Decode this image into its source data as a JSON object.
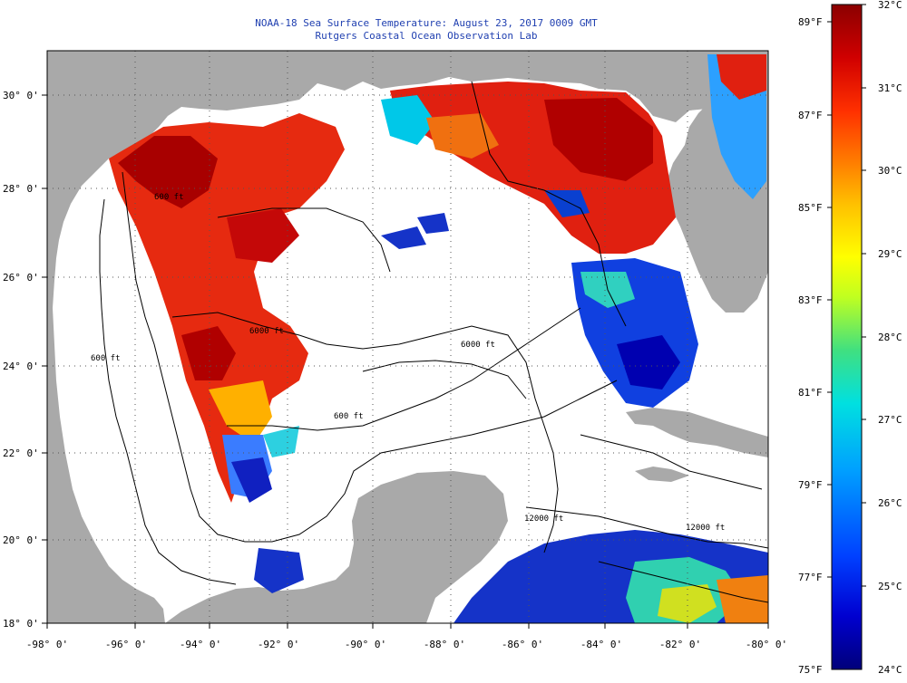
{
  "title": {
    "line1": "NOAA-18 Sea Surface Temperature:  August 23, 2017 0009 GMT",
    "line2": "Rutgers Coastal Ocean Observation Lab"
  },
  "map": {
    "lon_labels": [
      "-98° 0'",
      "-96° 0'",
      "-94° 0'",
      "-92° 0'",
      "-90° 0'",
      "-88° 0'",
      "-86° 0'",
      "-84° 0'",
      "-82° 0'",
      "-80° 0'"
    ],
    "lat_labels": [
      "30° 0'",
      "28° 0'",
      "26° 0'",
      "24° 0'",
      "22° 0'",
      "20° 0'",
      "18° 0'"
    ],
    "contour_labels": [
      "600 ft",
      "6000 ft",
      "6000 ft",
      "600 ft",
      "600 ft",
      "12000 ft",
      "12000 ft"
    ],
    "colors": {
      "land": "#a9a9a9",
      "no_data": "#ffffff",
      "gridline": "#555555"
    }
  },
  "colorbar": {
    "fahrenheit": [
      "89°F",
      "87°F",
      "85°F",
      "83°F",
      "81°F",
      "79°F",
      "77°F",
      "75°F"
    ],
    "celsius": [
      "32°C",
      "31°C",
      "30°C",
      "29°C",
      "28°C",
      "27°C",
      "26°C",
      "25°C",
      "24°C"
    ],
    "range_f": [
      75,
      89.6
    ],
    "range_c": [
      24,
      32
    ],
    "stops": [
      "#00007a",
      "#0000d0",
      "#0040ff",
      "#00a0ff",
      "#00e0e0",
      "#40e080",
      "#c0ff20",
      "#ffff00",
      "#ffc000",
      "#ff8000",
      "#ff3000",
      "#d00000",
      "#8b0000"
    ]
  }
}
